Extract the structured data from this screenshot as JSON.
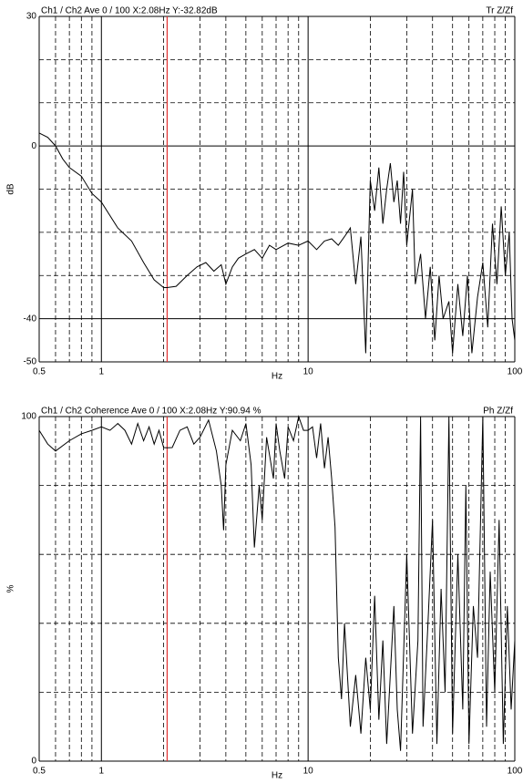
{
  "chart_data": [
    {
      "type": "line",
      "title": "Ch1 / Ch2  Ave 0 / 100  X:2.08Hz  Y:-32.82dB",
      "annotation": "Tr Z/Zf",
      "xlabel": "Hz",
      "ylabel": "dB",
      "xscale": "log",
      "xlim": [
        0.5,
        100
      ],
      "ylim": [
        -50,
        30
      ],
      "xticks": [
        0.5,
        1,
        10,
        100
      ],
      "yticks": [
        30,
        0,
        -40,
        -50
      ],
      "xminor": [
        0.6,
        0.7,
        0.8,
        0.9,
        2,
        3,
        4,
        5,
        6,
        7,
        8,
        9,
        20,
        30,
        40,
        50,
        60,
        70,
        80,
        90
      ],
      "yminor": [
        20,
        10,
        -10,
        -20,
        -30
      ],
      "grid": true,
      "cursor_x": 2.08,
      "cursor_color": "#e03030",
      "series": [
        {
          "color": "#000000",
          "x": [
            0.5,
            0.55,
            0.6,
            0.65,
            0.7,
            0.8,
            0.9,
            1,
            1.2,
            1.4,
            1.6,
            1.8,
            2,
            2.08,
            2.3,
            2.6,
            2.9,
            3.2,
            3.5,
            3.8,
            4,
            4.3,
            4.6,
            5,
            5.5,
            6,
            6.5,
            7,
            8,
            9,
            10,
            11,
            12,
            13,
            14,
            15,
            16,
            17,
            18,
            19,
            20,
            21,
            22,
            23,
            24,
            25,
            26,
            27,
            28,
            29,
            30,
            32,
            33,
            35,
            37,
            39,
            41,
            43,
            45,
            48,
            50,
            53,
            56,
            59,
            62,
            66,
            70,
            74,
            78,
            82,
            86,
            90,
            94,
            97,
            100
          ],
          "values": [
            3,
            2,
            0,
            -3,
            -5,
            -7,
            -11,
            -13,
            -19,
            -22,
            -27,
            -31,
            -32.8,
            -32.8,
            -32.5,
            -30,
            -28,
            -27,
            -29,
            -27.5,
            -32,
            -28,
            -26,
            -25,
            -24,
            -26,
            -23,
            -24,
            -22.5,
            -23,
            -22,
            -24,
            -22,
            -21.5,
            -23,
            -21,
            -19,
            -32,
            -21,
            -48,
            -8,
            -15,
            -5,
            -18,
            -10,
            -4,
            -13,
            -8,
            -18,
            -6,
            -23,
            -10,
            -32,
            -25,
            -40,
            -28,
            -45,
            -30,
            -40,
            -36,
            -48,
            -32,
            -44,
            -30,
            -48,
            -35,
            -27,
            -42,
            -18,
            -32,
            -14,
            -30,
            -20,
            -40,
            -45
          ]
        }
      ]
    },
    {
      "type": "line",
      "title": "Ch1 / Ch2  Coherence Ave 0 / 100  X:2.08Hz  Y:90.94 %",
      "annotation": "Ph Z/Zf",
      "xlabel": "Hz",
      "ylabel": "%",
      "xscale": "log",
      "xlim": [
        0.5,
        100
      ],
      "ylim": [
        0,
        100
      ],
      "xticks": [
        0.5,
        1,
        10,
        100
      ],
      "yticks": [
        100,
        0
      ],
      "xminor": [
        0.6,
        0.7,
        0.8,
        0.9,
        2,
        3,
        4,
        5,
        6,
        7,
        8,
        9,
        20,
        30,
        40,
        50,
        60,
        70,
        80,
        90
      ],
      "yminor": [
        80,
        60,
        40,
        20
      ],
      "grid": true,
      "cursor_x": 2.08,
      "cursor_color": "#e03030",
      "series": [
        {
          "color": "#000000",
          "x": [
            0.5,
            0.55,
            0.6,
            0.7,
            0.8,
            0.9,
            1,
            1.1,
            1.2,
            1.3,
            1.4,
            1.5,
            1.6,
            1.7,
            1.8,
            1.9,
            2,
            2.08,
            2.2,
            2.4,
            2.6,
            2.8,
            3,
            3.3,
            3.6,
            3.8,
            3.9,
            4,
            4.3,
            4.7,
            5,
            5.3,
            5.5,
            5.8,
            6,
            6.3,
            6.8,
            7,
            7.3,
            7.7,
            8,
            8.5,
            9,
            9.5,
            10,
            10.5,
            11,
            11.5,
            12,
            12.5,
            13,
            13.5,
            14,
            14.5,
            15,
            16,
            17,
            18,
            19,
            20,
            21,
            22,
            23,
            24,
            26,
            27,
            28,
            30,
            32,
            34,
            35,
            36,
            38,
            40,
            42,
            44,
            46,
            48,
            50,
            53,
            56,
            58,
            60,
            63,
            66,
            70,
            73,
            76,
            80,
            84,
            88,
            92,
            96,
            100
          ],
          "values": [
            96,
            92,
            90,
            93,
            95,
            96,
            97,
            96,
            98,
            96,
            92,
            98,
            93,
            97,
            92,
            96,
            91,
            90.94,
            91,
            96,
            97,
            92,
            94,
            99,
            90,
            80,
            67,
            86,
            96,
            93,
            98,
            86,
            62,
            80,
            70,
            94,
            82,
            98,
            90,
            82,
            97,
            93,
            100,
            96,
            96,
            97,
            88,
            98,
            85,
            94,
            82,
            68,
            30,
            18,
            40,
            10,
            25,
            8,
            30,
            15,
            48,
            12,
            35,
            5,
            45,
            15,
            3,
            60,
            8,
            35,
            100,
            10,
            40,
            70,
            5,
            50,
            20,
            100,
            8,
            60,
            15,
            80,
            5,
            45,
            30,
            100,
            10,
            55,
            20,
            70,
            5,
            45,
            15,
            35
          ]
        }
      ]
    }
  ]
}
